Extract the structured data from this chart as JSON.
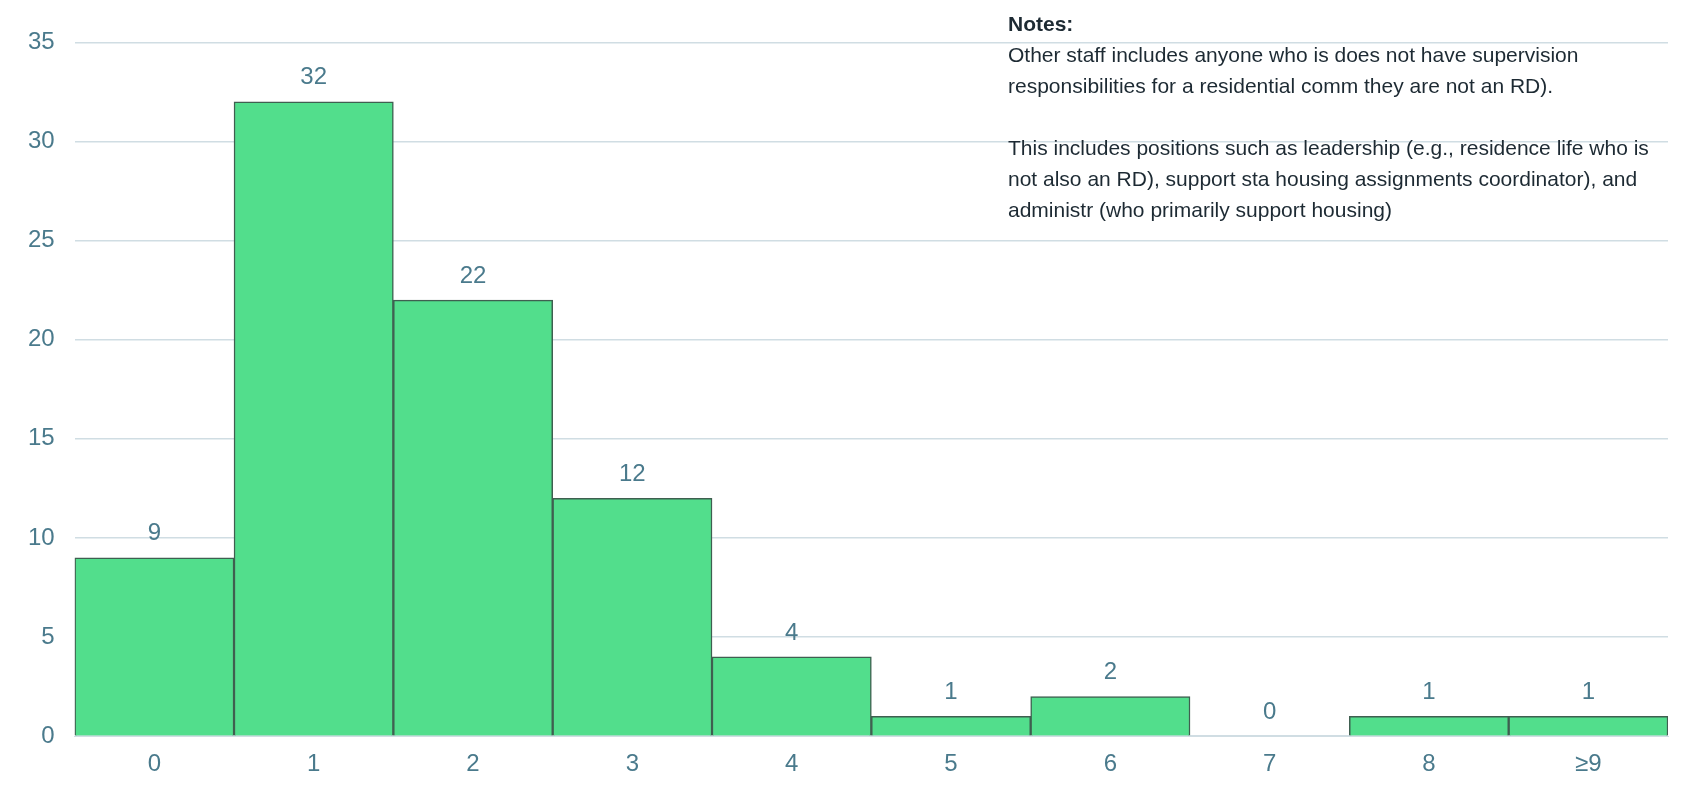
{
  "chart_data": {
    "type": "bar",
    "categories": [
      "0",
      "1",
      "2",
      "3",
      "4",
      "5",
      "6",
      "7",
      "8",
      "≥9"
    ],
    "values": [
      9,
      32,
      22,
      12,
      4,
      1,
      2,
      0,
      1,
      1
    ],
    "color": "#52de8c",
    "ylim": [
      0,
      35
    ],
    "yticks": [
      0,
      5,
      10,
      15,
      20,
      25,
      30,
      35
    ],
    "grid": "y",
    "data_labels": true,
    "annotations": [
      "Notes:",
      "Other staff includes anyone who is does not have supervision responsibilities for a residential comm they are not an RD).",
      "This includes positions such as leadership (e.g., residence life who is not also an RD), support sta housing assignments coordinator), and administr (who primarily support housing)"
    ]
  }
}
